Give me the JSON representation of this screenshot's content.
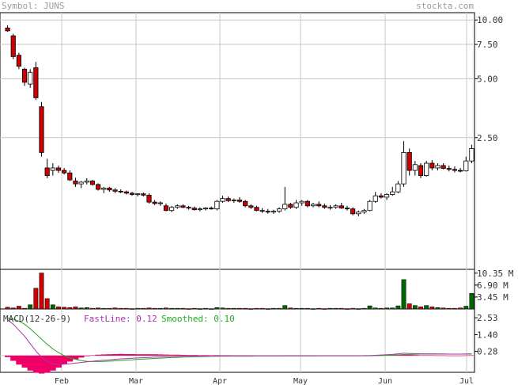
{
  "header": {
    "symbol_label": "Symbol: JUNS",
    "site_label": "stockta.com"
  },
  "colors": {
    "frame": "#000000",
    "grid": "#c8c8c8",
    "down_candle": "#cc0000",
    "up_candle": "#ffffff",
    "down_volume": "#cc0000",
    "up_volume": "#006600",
    "fast_line": "#aa33aa",
    "smoothed_line": "#22aa22",
    "histogram": "#ee0066",
    "text": "#333333",
    "header_text": "#9a9a9a"
  },
  "chart_data": [
    {
      "type": "candlestick",
      "title": "",
      "y_scale": "log",
      "y_ticks": [
        "10.00",
        "7.50",
        "5.00",
        "2.50"
      ],
      "x_ticks": [
        "Feb",
        "Mar",
        "Apr",
        "May",
        "Jun",
        "Jul"
      ],
      "ohlc": [
        [
          9.1,
          9.4,
          8.7,
          8.8
        ],
        [
          8.3,
          8.5,
          6.3,
          6.5
        ],
        [
          6.6,
          6.8,
          5.6,
          5.8
        ],
        [
          5.6,
          5.7,
          4.6,
          4.8
        ],
        [
          4.7,
          5.6,
          4.5,
          5.4
        ],
        [
          5.7,
          6.1,
          3.9,
          4.0
        ],
        [
          3.6,
          3.8,
          2.0,
          2.1
        ],
        [
          1.75,
          1.95,
          1.55,
          1.6
        ],
        [
          1.7,
          1.85,
          1.6,
          1.75
        ],
        [
          1.75,
          1.8,
          1.65,
          1.7
        ],
        [
          1.7,
          1.75,
          1.62,
          1.65
        ],
        [
          1.65,
          1.7,
          1.5,
          1.52
        ],
        [
          1.5,
          1.56,
          1.4,
          1.45
        ],
        [
          1.45,
          1.5,
          1.38,
          1.48
        ],
        [
          1.48,
          1.55,
          1.44,
          1.5
        ],
        [
          1.5,
          1.52,
          1.42,
          1.44
        ],
        [
          1.44,
          1.46,
          1.34,
          1.36
        ],
        [
          1.36,
          1.4,
          1.3,
          1.38
        ],
        [
          1.38,
          1.4,
          1.32,
          1.35
        ],
        [
          1.35,
          1.38,
          1.3,
          1.33
        ],
        [
          1.33,
          1.36,
          1.3,
          1.32
        ],
        [
          1.32,
          1.34,
          1.28,
          1.3
        ],
        [
          1.3,
          1.32,
          1.26,
          1.28
        ],
        [
          1.28,
          1.3,
          1.25,
          1.29
        ],
        [
          1.29,
          1.31,
          1.25,
          1.27
        ],
        [
          1.27,
          1.3,
          1.15,
          1.17
        ],
        [
          1.17,
          1.2,
          1.13,
          1.15
        ],
        [
          1.15,
          1.18,
          1.12,
          1.16
        ],
        [
          1.12,
          1.15,
          1.05,
          1.06
        ],
        [
          1.06,
          1.12,
          1.04,
          1.1
        ],
        [
          1.1,
          1.14,
          1.08,
          1.12
        ],
        [
          1.12,
          1.14,
          1.09,
          1.1
        ],
        [
          1.1,
          1.12,
          1.07,
          1.09
        ],
        [
          1.09,
          1.11,
          1.06,
          1.07
        ],
        [
          1.07,
          1.1,
          1.05,
          1.08
        ],
        [
          1.08,
          1.1,
          1.06,
          1.09
        ],
        [
          1.09,
          1.11,
          1.07,
          1.08
        ],
        [
          1.08,
          1.2,
          1.06,
          1.18
        ],
        [
          1.18,
          1.26,
          1.16,
          1.22
        ],
        [
          1.22,
          1.25,
          1.17,
          1.19
        ],
        [
          1.19,
          1.22,
          1.16,
          1.2
        ],
        [
          1.2,
          1.24,
          1.16,
          1.18
        ],
        [
          1.18,
          1.2,
          1.1,
          1.12
        ],
        [
          1.12,
          1.14,
          1.08,
          1.1
        ],
        [
          1.1,
          1.12,
          1.05,
          1.06
        ],
        [
          1.06,
          1.09,
          1.03,
          1.05
        ],
        [
          1.05,
          1.08,
          1.02,
          1.04
        ],
        [
          1.04,
          1.07,
          1.02,
          1.05
        ],
        [
          1.05,
          1.1,
          1.03,
          1.08
        ],
        [
          1.08,
          1.4,
          1.06,
          1.14
        ],
        [
          1.14,
          1.16,
          1.08,
          1.1
        ],
        [
          1.1,
          1.2,
          1.08,
          1.16
        ],
        [
          1.16,
          1.2,
          1.12,
          1.18
        ],
        [
          1.18,
          1.2,
          1.1,
          1.12
        ],
        [
          1.12,
          1.16,
          1.1,
          1.14
        ],
        [
          1.14,
          1.18,
          1.1,
          1.12
        ],
        [
          1.12,
          1.15,
          1.08,
          1.1
        ],
        [
          1.1,
          1.13,
          1.07,
          1.1
        ],
        [
          1.1,
          1.14,
          1.08,
          1.12
        ],
        [
          1.12,
          1.16,
          1.08,
          1.09
        ],
        [
          1.09,
          1.12,
          1.06,
          1.08
        ],
        [
          1.08,
          1.1,
          1.0,
          1.02
        ],
        [
          1.02,
          1.06,
          0.99,
          1.04
        ],
        [
          1.04,
          1.08,
          1.02,
          1.06
        ],
        [
          1.06,
          1.2,
          1.05,
          1.18
        ],
        [
          1.18,
          1.32,
          1.16,
          1.26
        ],
        [
          1.26,
          1.3,
          1.22,
          1.24
        ],
        [
          1.24,
          1.3,
          1.2,
          1.28
        ],
        [
          1.28,
          1.4,
          1.26,
          1.32
        ],
        [
          1.32,
          1.5,
          1.3,
          1.45
        ],
        [
          1.45,
          2.4,
          1.4,
          2.1
        ],
        [
          2.1,
          2.2,
          1.6,
          1.7
        ],
        [
          1.7,
          1.9,
          1.6,
          1.82
        ],
        [
          1.8,
          1.85,
          1.55,
          1.6
        ],
        [
          1.6,
          1.9,
          1.58,
          1.85
        ],
        [
          1.85,
          1.92,
          1.7,
          1.75
        ],
        [
          1.75,
          1.85,
          1.7,
          1.8
        ],
        [
          1.8,
          1.85,
          1.72,
          1.74
        ],
        [
          1.74,
          1.8,
          1.68,
          1.72
        ],
        [
          1.72,
          1.78,
          1.66,
          1.7
        ],
        [
          1.7,
          1.75,
          1.66,
          1.69
        ],
        [
          1.69,
          2.0,
          1.68,
          1.9
        ],
        [
          1.9,
          2.3,
          1.85,
          2.2
        ]
      ]
    },
    {
      "type": "bar",
      "title": "",
      "unit": "M",
      "y_ticks": [
        "10.35 M",
        "6.90 M",
        "3.45 M"
      ],
      "values": [
        0.5,
        0.3,
        0.8,
        0.2,
        1.2,
        6.0,
        10.4,
        3.0,
        1.2,
        0.6,
        0.5,
        0.4,
        0.6,
        0.3,
        0.4,
        0.2,
        0.3,
        0.2,
        0.2,
        0.3,
        0.2,
        0.2,
        0.1,
        0.2,
        0.2,
        0.3,
        0.2,
        0.2,
        0.3,
        0.2,
        0.2,
        0.2,
        0.1,
        0.2,
        0.1,
        0.2,
        0.1,
        0.4,
        0.3,
        0.2,
        0.2,
        0.2,
        0.2,
        0.1,
        0.2,
        0.2,
        0.1,
        0.2,
        0.2,
        1.0,
        0.3,
        0.2,
        0.2,
        0.2,
        0.1,
        0.2,
        0.1,
        0.2,
        0.2,
        0.2,
        0.1,
        0.2,
        0.1,
        0.2,
        0.9,
        0.3,
        0.2,
        0.3,
        0.3,
        0.9,
        8.5,
        1.5,
        1.0,
        0.6,
        1.0,
        0.6,
        0.4,
        0.3,
        0.2,
        0.2,
        0.3,
        0.8,
        4.5
      ]
    },
    {
      "type": "macd",
      "title": "MACD(12-26-9)",
      "fast_label": "FastLine: 0.12",
      "smoothed_label": "Smoothed: 0.10",
      "y_ticks": [
        "2.53",
        "1.40",
        "0.28"
      ],
      "fast": [
        2.4,
        2.1,
        1.7,
        1.3,
        0.8,
        0.3,
        -0.1,
        -0.4,
        -0.55,
        -0.6,
        -0.58,
        -0.55,
        -0.5,
        -0.46,
        -0.42,
        -0.38,
        -0.34,
        -0.31,
        -0.28,
        -0.25,
        -0.22,
        -0.2,
        -0.18,
        -0.16,
        -0.14,
        -0.12,
        -0.1,
        -0.09,
        -0.08,
        -0.07,
        -0.06,
        -0.05,
        -0.05,
        -0.04,
        -0.04,
        -0.03,
        -0.03,
        -0.02,
        -0.02,
        -0.02,
        -0.02,
        -0.02,
        -0.02,
        -0.02,
        -0.02,
        -0.02,
        -0.02,
        -0.02,
        -0.02,
        -0.01,
        -0.01,
        -0.01,
        -0.01,
        -0.01,
        -0.01,
        -0.01,
        -0.01,
        -0.01,
        -0.01,
        -0.01,
        -0.01,
        -0.01,
        -0.01,
        0.0,
        0.0,
        0.02,
        0.04,
        0.06,
        0.08,
        0.12,
        0.16,
        0.14,
        0.13,
        0.12,
        0.12,
        0.12,
        0.11,
        0.11,
        0.1,
        0.1,
        0.1,
        0.11,
        0.12
      ],
      "smoothed": [
        2.5,
        2.45,
        2.3,
        2.1,
        1.8,
        1.45,
        1.1,
        0.75,
        0.45,
        0.2,
        0.0,
        -0.15,
        -0.25,
        -0.33,
        -0.38,
        -0.4,
        -0.4,
        -0.39,
        -0.37,
        -0.35,
        -0.33,
        -0.3,
        -0.28,
        -0.25,
        -0.23,
        -0.21,
        -0.19,
        -0.17,
        -0.15,
        -0.13,
        -0.12,
        -0.1,
        -0.09,
        -0.08,
        -0.07,
        -0.06,
        -0.05,
        -0.05,
        -0.04,
        -0.04,
        -0.03,
        -0.03,
        -0.03,
        -0.03,
        -0.02,
        -0.02,
        -0.02,
        -0.02,
        -0.02,
        -0.02,
        -0.02,
        -0.02,
        -0.02,
        -0.02,
        -0.02,
        -0.01,
        -0.01,
        -0.01,
        -0.01,
        -0.01,
        -0.01,
        -0.01,
        -0.01,
        -0.01,
        -0.01,
        0.0,
        0.01,
        0.02,
        0.03,
        0.05,
        0.07,
        0.08,
        0.09,
        0.1,
        0.1,
        0.1,
        0.1,
        0.1,
        0.1,
        0.1,
        0.1,
        0.1,
        0.1
      ]
    }
  ]
}
